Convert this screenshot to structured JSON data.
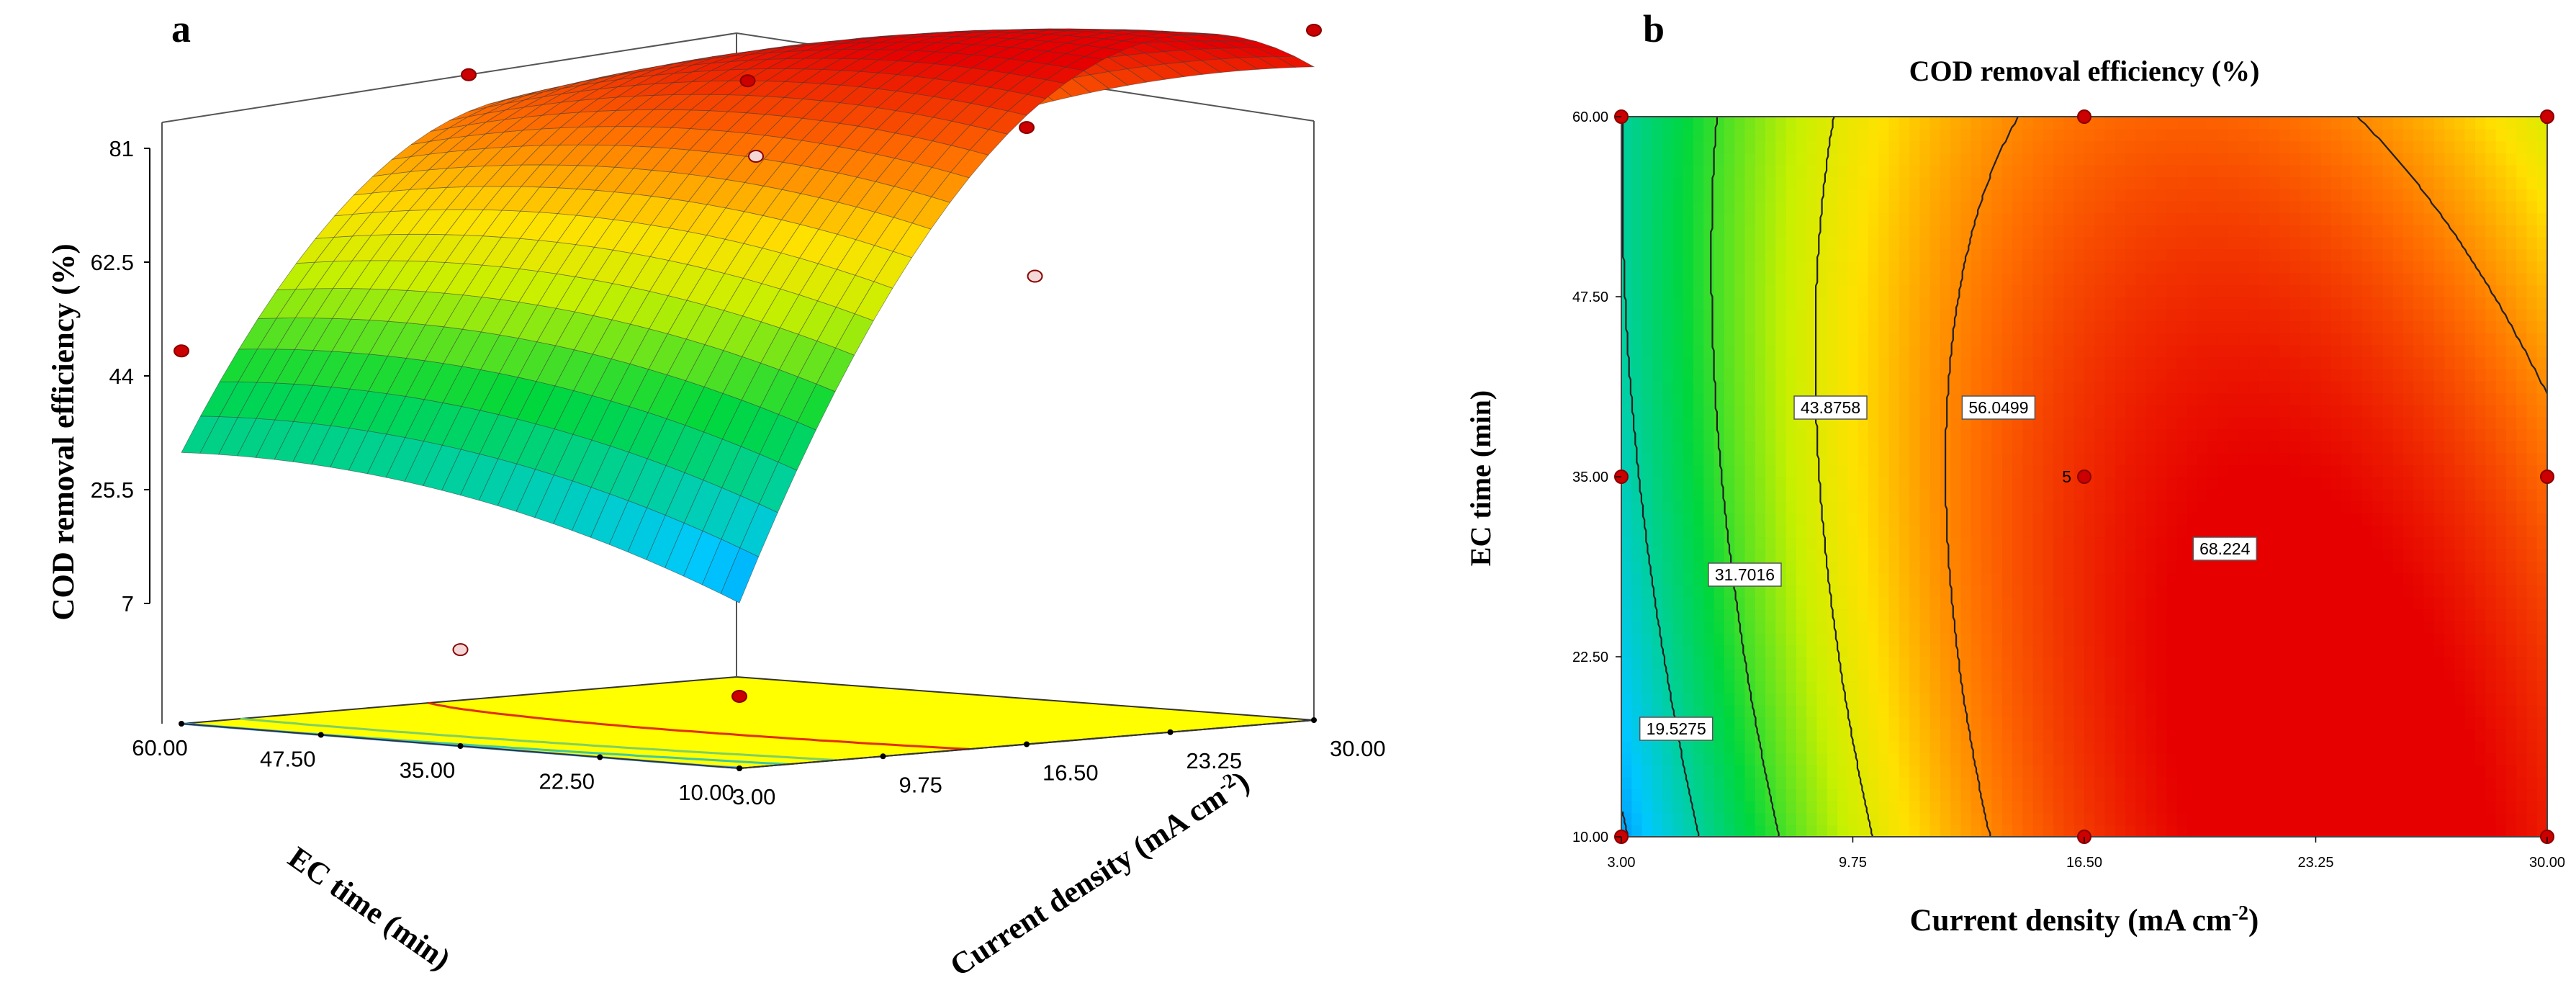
{
  "chart_data": [
    {
      "panel": "a",
      "type": "surface3d",
      "zlabel": "COD removal efficiency (%)",
      "xlabel": "EC time (min)",
      "ylabel": "Current density (mA cm",
      "ylabel_sup": "-2",
      "ylabel_end": ")",
      "z_ticks": [
        "81",
        "62.5",
        "44",
        "25.5",
        "7"
      ],
      "x_ticks": [
        "60.00",
        "47.50",
        "35.00",
        "22.50",
        "10.00"
      ],
      "y_ticks": [
        "3.00",
        "9.75",
        "16.50",
        "23.25",
        "30.00"
      ],
      "xlim": [
        10,
        60
      ],
      "ylim": [
        3,
        30
      ],
      "zlim": [
        7,
        81
      ],
      "grid_resolution": 30,
      "design_points": [
        {
          "time": 10,
          "density": 3,
          "cod": 7,
          "above": true
        },
        {
          "time": 60,
          "density": 3,
          "cod": 44,
          "above": true
        },
        {
          "time": 60,
          "density": 30,
          "cod": 62,
          "above": false
        },
        {
          "time": 10,
          "density": 30,
          "cod": 83,
          "above": true
        },
        {
          "time": 35,
          "density": 16.5,
          "cod": 77,
          "above": true
        },
        {
          "time": 35,
          "density": 3,
          "cod": 10,
          "above": false
        },
        {
          "time": 60,
          "density": 16.5,
          "cod": 75,
          "above": true
        },
        {
          "time": 10,
          "density": 16.5,
          "cod": 74,
          "above": true
        },
        {
          "time": 35,
          "density": 30,
          "cod": 50,
          "above": false
        }
      ]
    },
    {
      "panel": "b",
      "type": "contour",
      "title": "COD removal efficiency (%)",
      "xlabel": "Current density (mA cm",
      "xlabel_sup": "-2",
      "xlabel_end": ")",
      "ylabel": "EC time (min)",
      "x_ticks": [
        "3.00",
        "9.75",
        "16.50",
        "23.25",
        "30.00"
      ],
      "y_ticks": [
        "10.00",
        "22.50",
        "35.00",
        "47.50",
        "60.00"
      ],
      "xlim": [
        3,
        30
      ],
      "ylim": [
        10,
        60
      ],
      "contour_labels": [
        "19.5275",
        "31.7016",
        "43.8758",
        "56.0499",
        "68.224"
      ],
      "center_point_label": "5",
      "design_points": [
        {
          "x": 3,
          "y": 10
        },
        {
          "x": 16.5,
          "y": 10
        },
        {
          "x": 30,
          "y": 10
        },
        {
          "x": 3,
          "y": 35
        },
        {
          "x": 16.5,
          "y": 35
        },
        {
          "x": 30,
          "y": 35
        },
        {
          "x": 3,
          "y": 60
        },
        {
          "x": 16.5,
          "y": 60
        },
        {
          "x": 30,
          "y": 60
        }
      ]
    }
  ]
}
